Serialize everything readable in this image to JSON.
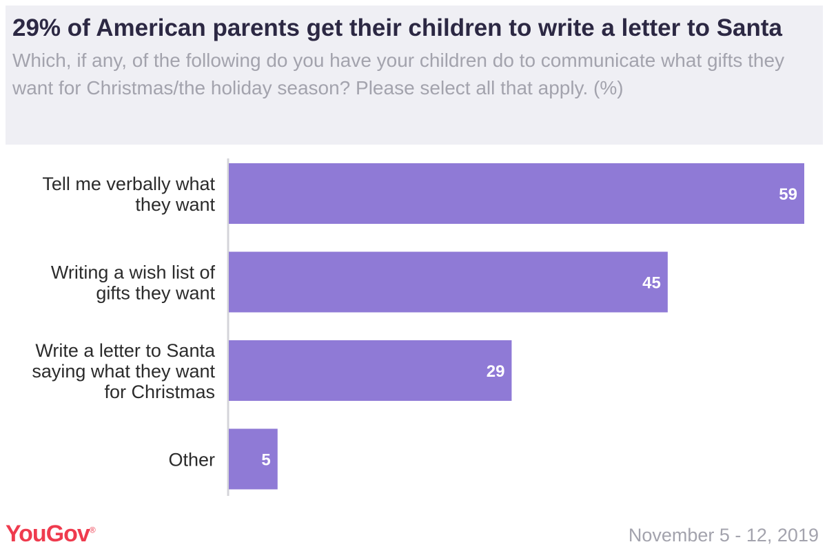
{
  "header": {
    "title": "29% of American parents get their children to write a letter to Santa",
    "subtitle": "Which, if any, of the following do you have your children do to communicate what gifts they want for Christmas/the holiday season? Please select all that apply. (%)"
  },
  "footer": {
    "brand": "YouGov",
    "date": "November 5 - 12, 2019"
  },
  "colors": {
    "bar": "#8f7ad6",
    "axis": "#d4d4d9",
    "brand": "#ef3b4e"
  },
  "chart_data": {
    "type": "bar",
    "orientation": "horizontal",
    "categories": [
      [
        "Tell me verbally what",
        "they want"
      ],
      [
        "Writing a wish list of",
        "gifts they want"
      ],
      [
        "Write a letter to Santa",
        "saying what they want",
        "for Christmas"
      ],
      [
        "Other"
      ]
    ],
    "values": [
      59,
      45,
      29,
      5
    ],
    "xlim": [
      0,
      59
    ],
    "grid": false,
    "legend": "none"
  }
}
